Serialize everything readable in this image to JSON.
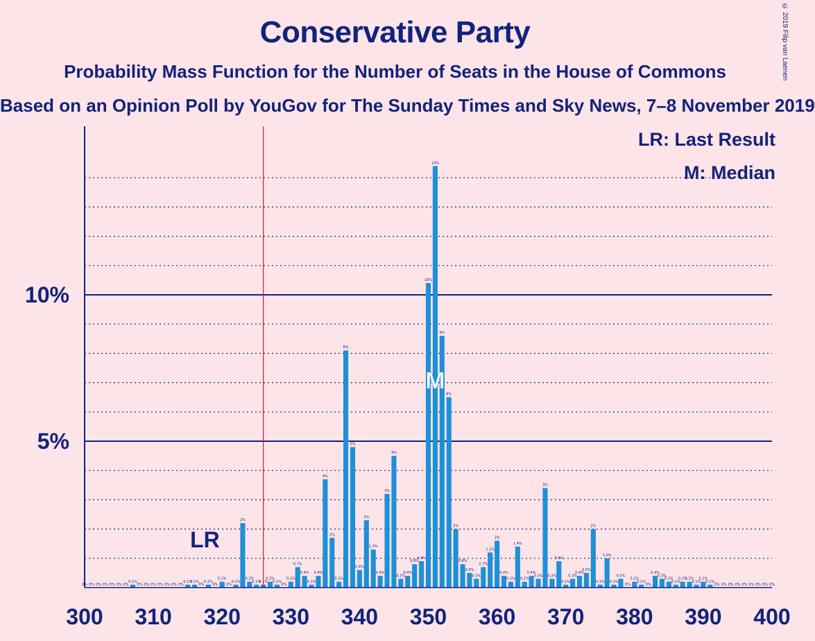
{
  "chart_data": {
    "type": "bar",
    "title": "Conservative Party",
    "subtitle": "Probability Mass Function for the Number of Seats in the House of Commons",
    "subtitle2": "Based on an Opinion Poll by YouGov for The Sunday Times and Sky News, 7–8 November 2019",
    "copyright": "© 2019 Filip van Laenen",
    "xlim": [
      300,
      400
    ],
    "ylim": [
      0,
      0.155
    ],
    "x_ticks": [
      "300",
      "310",
      "320",
      "330",
      "340",
      "350",
      "360",
      "370",
      "380",
      "390",
      "400"
    ],
    "y_ticks": [
      {
        "value": 0.05,
        "label": "5%"
      },
      {
        "value": 0.1,
        "label": "10%"
      }
    ],
    "grid": "dotted every 1%, solid at 5% and 10%",
    "legend": {
      "lr": "LR: Last Result",
      "median": "M: Median"
    },
    "last_result": {
      "seat": 326,
      "label": "LR"
    },
    "median": {
      "seat": 351,
      "label": "M"
    },
    "colors": {
      "bar": "#1e90d8",
      "axis": "#12237a",
      "last_result_line": "#d01c2b",
      "background": "#fde4e8"
    },
    "seats": [
      300,
      301,
      302,
      303,
      304,
      305,
      306,
      307,
      308,
      309,
      310,
      311,
      312,
      313,
      314,
      315,
      316,
      317,
      318,
      319,
      320,
      321,
      322,
      323,
      324,
      325,
      326,
      327,
      328,
      329,
      330,
      331,
      332,
      333,
      334,
      335,
      336,
      337,
      338,
      339,
      340,
      341,
      342,
      343,
      344,
      345,
      346,
      347,
      348,
      349,
      350,
      351,
      352,
      353,
      354,
      355,
      356,
      357,
      358,
      359,
      360,
      361,
      362,
      363,
      364,
      365,
      366,
      367,
      368,
      369,
      370,
      371,
      372,
      373,
      374,
      375,
      376,
      377,
      378,
      379,
      380,
      381,
      382,
      383,
      384,
      385,
      386,
      387,
      388,
      389,
      390,
      391,
      392,
      393,
      394,
      395,
      396,
      397,
      398,
      399,
      400
    ],
    "values": [
      0,
      0,
      0,
      0,
      0,
      0,
      0,
      0.001,
      0,
      0,
      0,
      0,
      0,
      0,
      0,
      0.001,
      0.001,
      0,
      0.001,
      0,
      0.002,
      0,
      0.001,
      0.022,
      0.002,
      0.001,
      0.001,
      0.002,
      0.001,
      0,
      0.002,
      0.007,
      0.004,
      0.001,
      0.004,
      0.037,
      0.017,
      0.002,
      0.081,
      0.048,
      0.006,
      0.023,
      0.013,
      0.004,
      0.032,
      0.045,
      0.003,
      0.004,
      0.008,
      0.009,
      0.104,
      0.144,
      0.086,
      0.065,
      0.02,
      0.008,
      0.005,
      0.003,
      0.007,
      0.012,
      0.016,
      0.004,
      0.002,
      0.014,
      0.002,
      0.004,
      0.003,
      0.034,
      0.003,
      0.009,
      0.001,
      0.003,
      0.004,
      0.005,
      0.02,
      0.001,
      0.01,
      0.001,
      0.003,
      0,
      0.002,
      0.001,
      0,
      0.004,
      0.003,
      0.002,
      0.001,
      0.002,
      0.002,
      0.001,
      0.002,
      0.001,
      0,
      0,
      0,
      0,
      0,
      0,
      0,
      0,
      0
    ],
    "data_labels": [
      "0%",
      "0%",
      "0%",
      "0%",
      "0%",
      "0%",
      "0%",
      "0.1%",
      "0%",
      "0%",
      "0%",
      "0%",
      "0%",
      "0%",
      "0%",
      "0.1%",
      "0.1%",
      "0%",
      "0.1%",
      "0%",
      "0.2%",
      "0%",
      "0.1%",
      "2%",
      "0.2%",
      "0.1%",
      "0.1%",
      "0.2%",
      "0.1%",
      "0%",
      "0.2%",
      "0.7%",
      "0.4%",
      "0.1%",
      "0.4%",
      "4%",
      "2%",
      "0.2%",
      "8%",
      "5%",
      "0.6%",
      "2%",
      "1.3%",
      "0.4%",
      "3%",
      "4%",
      "0.3%",
      "0.4%",
      "0.8%",
      "0.9%",
      "10%",
      "14%",
      "9%",
      "6%",
      "2%",
      "0.8%",
      "0.5%",
      "0.3%",
      "0.7%",
      "1.2%",
      "2%",
      "0.4%",
      "0.2%",
      "1.4%",
      "0.2%",
      "0.4%",
      "0.3%",
      "3%",
      "0.3%",
      "0.9%",
      "0.1%",
      "0.3%",
      "0.4%",
      "0.5%",
      "2%",
      "0.1%",
      "1.0%",
      "0.1%",
      "0.3%",
      "0%",
      "0.2%",
      "0.1%",
      "0%",
      "0.4%",
      "0.3%",
      "0.2%",
      "0.1%",
      "0.2%",
      "0.2%",
      "0.1%",
      "0.2%",
      "0.1%",
      "0%",
      "0%",
      "0%",
      "0%",
      "0%",
      "0%",
      "0%",
      "0%",
      "0%"
    ]
  }
}
